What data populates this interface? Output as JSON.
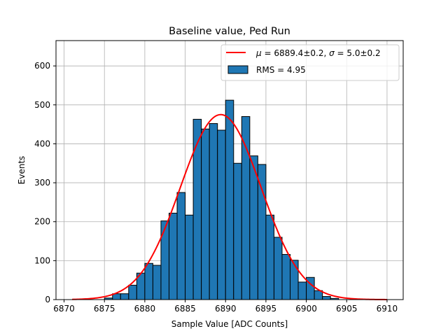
{
  "chart_data": {
    "type": "bar",
    "title": "Baseline value, Ped Run",
    "xlabel": "Sample Value [ADC Counts]",
    "ylabel": "Events",
    "xlim": [
      6869,
      6912
    ],
    "ylim": [
      0,
      665
    ],
    "x_ticks": [
      6870,
      6875,
      6880,
      6885,
      6890,
      6895,
      6900,
      6905,
      6910
    ],
    "y_ticks": [
      0,
      100,
      200,
      300,
      400,
      500,
      600
    ],
    "grid": true,
    "legend_position": "top-right",
    "histogram": {
      "label": "RMS = 4.95",
      "color": "#1f77b4",
      "edge_color": "#000000",
      "bin_width": 1,
      "bin_left_edges": [
        6875,
        6876,
        6877,
        6878,
        6879,
        6880,
        6881,
        6882,
        6883,
        6884,
        6885,
        6886,
        6887,
        6888,
        6889,
        6890,
        6891,
        6892,
        6893,
        6894,
        6895,
        6896,
        6897,
        6898,
        6899,
        6900,
        6901,
        6902,
        6903
      ],
      "values": [
        4,
        15,
        15,
        37,
        68,
        93,
        88,
        202,
        222,
        275,
        217,
        463,
        438,
        452,
        435,
        512,
        350,
        470,
        369,
        347,
        217,
        160,
        116,
        101,
        45,
        57,
        23,
        8,
        3
      ]
    },
    "fit": {
      "label": "$\\mu = 6889.4$±0.2, $\\sigma = 5.0$±0.2",
      "label_mu": "μ",
      "label_mu_value": " = 6889.4±0.2, ",
      "label_sigma": "σ",
      "label_sigma_value": " = 5.0±0.2",
      "color": "#ff0000",
      "mu": 6889.4,
      "sigma": 5.0,
      "amplitude": 475,
      "x_range": [
        6871,
        6910
      ]
    }
  }
}
